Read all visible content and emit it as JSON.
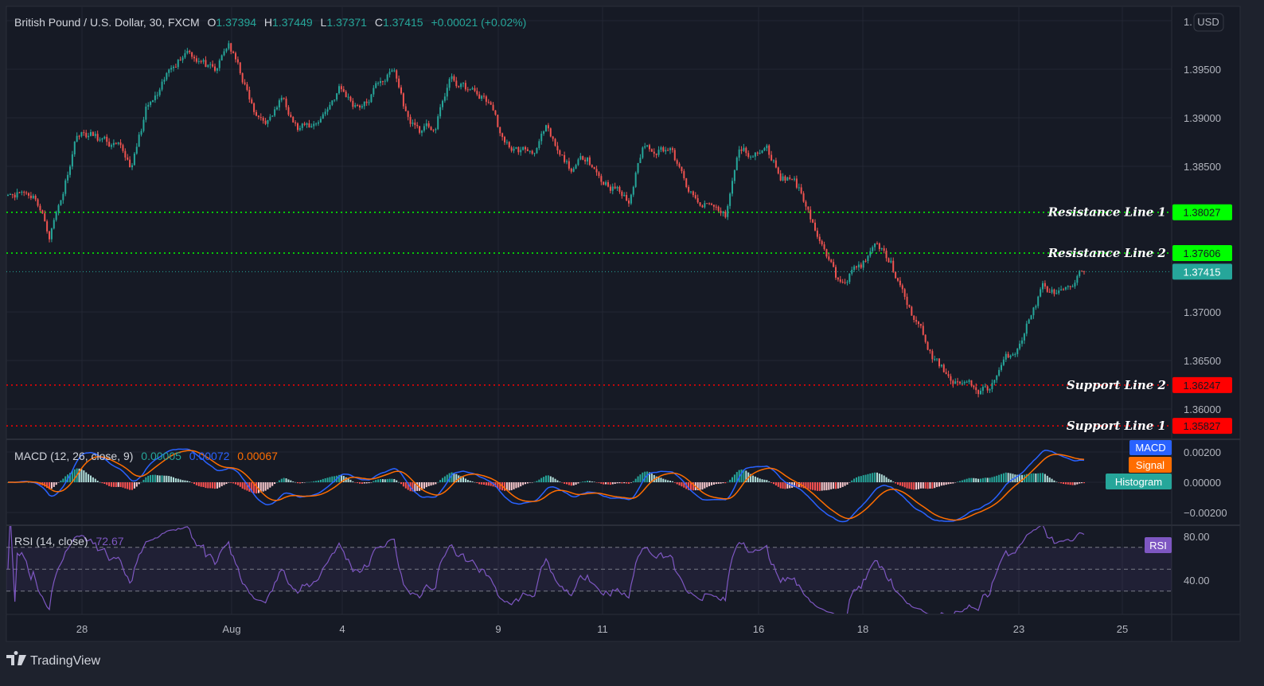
{
  "header": {
    "symbol": "British Pound / U.S. Dollar, 30, FXCM",
    "o_label": "O",
    "o_value": "1.37394",
    "h_label": "H",
    "h_value": "1.37449",
    "l_label": "L",
    "l_value": "1.37371",
    "c_label": "C",
    "c_value": "1.37415",
    "change": "+0.00021 (+0.02%)"
  },
  "currency_button": "USD",
  "branding": "TradingView",
  "colors": {
    "up": "#26a69a",
    "down": "#ef5350",
    "resistance": "#00ff00",
    "support": "#ff0000",
    "macd": "#2962ff",
    "signal": "#ff6d00",
    "histogram": "#26a69a",
    "rsi": "#7e57c2"
  },
  "levels": [
    {
      "label": "Resistance Line 1",
      "value": "1.38027",
      "price": 1.38027,
      "kind": "resistance"
    },
    {
      "label": "Resistance Line 2",
      "value": "1.37606",
      "price": 1.37606,
      "kind": "resistance"
    },
    {
      "label": "Support Line 2",
      "value": "1.36247",
      "price": 1.36247,
      "kind": "support"
    },
    {
      "label": "Support Line 1",
      "value": "1.35827",
      "price": 1.35827,
      "kind": "support"
    }
  ],
  "current_price": {
    "value": "1.37415",
    "price": 1.37415
  },
  "macd": {
    "title": "MACD (12, 26, close, 9)",
    "histogram_value": "0.00005",
    "macd_value": "0.00072",
    "signal_value": "0.00067",
    "legend": [
      "MACD",
      "Signal",
      "Histogram"
    ],
    "ticks": [
      "0.00200",
      "0.00000",
      "−0.00200"
    ],
    "tick_values": [
      0.002,
      0,
      -0.002
    ]
  },
  "rsi": {
    "title": "RSI (14, close)",
    "value": "72.67",
    "badge": "RSI",
    "ticks": [
      "80.00",
      "40.00"
    ],
    "tick_values": [
      80,
      40
    ],
    "bands": [
      70,
      50,
      30
    ]
  },
  "chart_data": {
    "type": "candlestick",
    "title": "British Pound / U.S. Dollar, 30, FXCM",
    "ylim": [
      1.3575,
      1.4
    ],
    "y_ticks": [
      "1.39500",
      "1.39000",
      "1.38500",
      "1.37000",
      "1.36500",
      "1.36000"
    ],
    "y_tick_values": [
      1.395,
      1.39,
      1.385,
      1.37,
      1.365,
      1.36
    ],
    "x_ticks": [
      "28",
      "Aug",
      "4",
      "9",
      "11",
      "16",
      "18",
      "23",
      "25"
    ],
    "grid": true,
    "approx_closes": [
      1.3825,
      1.3825,
      1.382,
      1.378,
      1.3825,
      1.3886,
      1.3882,
      1.3874,
      1.3866,
      1.3849,
      1.3907,
      1.3923,
      1.3956,
      1.3972,
      1.396,
      1.3943,
      1.3976,
      1.3939,
      1.3898,
      1.3898,
      1.3923,
      1.389,
      1.389,
      1.3907,
      1.3931,
      1.3915,
      1.3915,
      1.3939,
      1.3948,
      1.3898,
      1.3886,
      1.389,
      1.3939,
      1.3931,
      1.3923,
      1.3915,
      1.387,
      1.3866,
      1.3866,
      1.3886,
      1.3857,
      1.3845,
      1.3862,
      1.3837,
      1.3829,
      1.3812,
      1.387,
      1.387,
      1.387,
      1.3833,
      1.3808,
      1.3808,
      1.38,
      1.3866,
      1.3862,
      1.3866,
      1.3841,
      1.3837,
      1.3808,
      1.3767,
      1.3734,
      1.3743,
      1.3751,
      1.3767,
      1.3751,
      1.371,
      1.3685,
      1.3652,
      1.3636,
      1.3628,
      1.362,
      1.362,
      1.3644,
      1.3661,
      1.3693,
      1.3726,
      1.3718,
      1.3718,
      1.37415
    ]
  }
}
